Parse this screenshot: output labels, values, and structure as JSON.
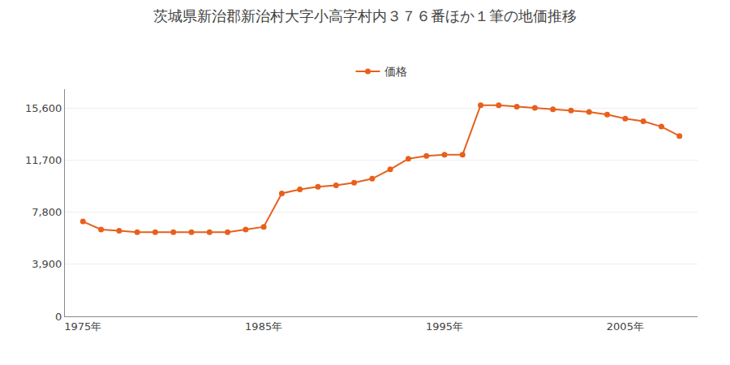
{
  "chart_data": {
    "type": "line",
    "title": "茨城県新治郡新治村大字小高字村内３７６番ほか１筆の地価推移",
    "x": [
      1975,
      1976,
      1977,
      1978,
      1979,
      1980,
      1981,
      1982,
      1983,
      1984,
      1985,
      1986,
      1987,
      1988,
      1989,
      1990,
      1991,
      1992,
      1993,
      1994,
      1995,
      1996,
      1997,
      1998,
      1999,
      2000,
      2001,
      2002,
      2003,
      2004,
      2005,
      2006,
      2007,
      2008
    ],
    "series": [
      {
        "name": "価格",
        "color": "#e8601c",
        "marker": "circle",
        "values": [
          7100,
          6500,
          6400,
          6300,
          6300,
          6300,
          6300,
          6300,
          6300,
          6500,
          6700,
          9200,
          9500,
          9700,
          9800,
          10000,
          10300,
          11000,
          11800,
          12000,
          12100,
          12100,
          15800,
          15800,
          15700,
          15600,
          15500,
          15400,
          15300,
          15100,
          14800,
          14600,
          14200,
          13500
        ]
      }
    ],
    "xlim": [
      1974,
      2009
    ],
    "xticks": [
      {
        "value": 1975,
        "label": "1975年"
      },
      {
        "value": 1985,
        "label": "1985年"
      },
      {
        "value": 1995,
        "label": "1995年"
      },
      {
        "value": 2005,
        "label": "2005年"
      }
    ],
    "ylim": [
      0,
      17000
    ],
    "yticks": [
      0,
      {
        "value": 3900,
        "label": "3,900"
      },
      {
        "value": 7800,
        "label": "7,800"
      },
      {
        "value": 11700,
        "label": "11,700"
      },
      {
        "value": 15600,
        "label": "15,600"
      }
    ],
    "grid": "y",
    "legend": "top"
  }
}
